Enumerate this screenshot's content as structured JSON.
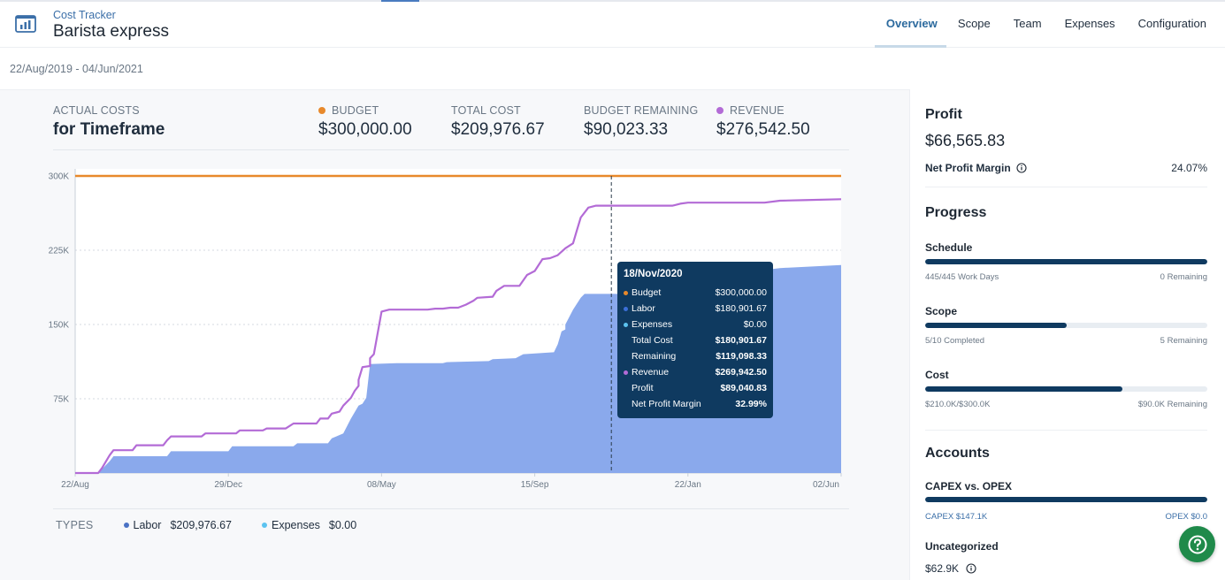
{
  "header": {
    "app_name": "Cost Tracker",
    "project_name": "Barista express",
    "tabs": [
      {
        "label": "Overview",
        "active": true
      },
      {
        "label": "Scope",
        "active": false
      },
      {
        "label": "Team",
        "active": false
      },
      {
        "label": "Expenses",
        "active": false
      },
      {
        "label": "Configuration",
        "active": false
      }
    ]
  },
  "date_range": "22/Aug/2019 - 04/Jun/2021",
  "kpis": {
    "actual_costs": {
      "label": "ACTUAL COSTS",
      "value": "for Timeframe"
    },
    "budget": {
      "label": "BUDGET",
      "value": "$300,000.00",
      "color": "#e8892b"
    },
    "total_cost": {
      "label": "TOTAL COST",
      "value": "$209,976.67"
    },
    "budget_remaining": {
      "label": "BUDGET REMAINING",
      "value": "$90,023.33"
    },
    "revenue": {
      "label": "REVENUE",
      "value": "$276,542.50",
      "color": "#b36bd6"
    }
  },
  "chart_data": {
    "type": "area",
    "x_tick_labels": [
      "22/Aug",
      "29/Dec",
      "08/May",
      "15/Sep",
      "22/Jan",
      "02/Jun"
    ],
    "y_tick_labels": [
      "300K",
      "225K",
      "150K",
      "75K"
    ],
    "ylim": [
      0,
      300000
    ],
    "grid": true,
    "series": [
      {
        "name": "Budget",
        "color": "#e8892b",
        "kind": "line",
        "values": [
          [
            0,
            300000
          ],
          [
            1,
            300000
          ]
        ]
      },
      {
        "name": "Labor",
        "color": "#8aa9ec",
        "kind": "area",
        "values": [
          [
            0,
            0
          ],
          [
            0.03,
            0
          ],
          [
            0.045,
            12000
          ],
          [
            0.05,
            17000
          ],
          [
            0.12,
            17000
          ],
          [
            0.125,
            22000
          ],
          [
            0.2,
            22000
          ],
          [
            0.205,
            27000
          ],
          [
            0.285,
            27000
          ],
          [
            0.29,
            30000
          ],
          [
            0.33,
            30000
          ],
          [
            0.335,
            35000
          ],
          [
            0.35,
            40000
          ],
          [
            0.36,
            55000
          ],
          [
            0.37,
            68000
          ],
          [
            0.375,
            70000
          ],
          [
            0.38,
            76000
          ],
          [
            0.385,
            110000
          ],
          [
            0.42,
            111000
          ],
          [
            0.48,
            111000
          ],
          [
            0.485,
            112000
          ],
          [
            0.54,
            113000
          ],
          [
            0.545,
            115000
          ],
          [
            0.575,
            116000
          ],
          [
            0.585,
            120000
          ],
          [
            0.625,
            122000
          ],
          [
            0.63,
            130000
          ],
          [
            0.635,
            143000
          ],
          [
            0.64,
            145000
          ],
          [
            0.64,
            150000
          ],
          [
            0.65,
            165000
          ],
          [
            0.66,
            177000
          ],
          [
            0.665,
            180900
          ],
          [
            0.76,
            180900
          ],
          [
            0.765,
            183000
          ],
          [
            0.8,
            186000
          ],
          [
            0.82,
            190000
          ],
          [
            0.85,
            197000
          ],
          [
            0.87,
            200000
          ],
          [
            0.89,
            204000
          ],
          [
            0.92,
            207000
          ],
          [
            1,
            209976
          ]
        ]
      },
      {
        "name": "Expenses",
        "color": "#5cc3f0",
        "kind": "line",
        "values": [
          [
            0,
            0
          ],
          [
            1,
            0
          ]
        ]
      },
      {
        "name": "Revenue",
        "color": "#b36bd6",
        "kind": "line",
        "values": [
          [
            0,
            0
          ],
          [
            0.03,
            0
          ],
          [
            0.035,
            5000
          ],
          [
            0.045,
            18000
          ],
          [
            0.05,
            23000
          ],
          [
            0.075,
            23000
          ],
          [
            0.08,
            28000
          ],
          [
            0.115,
            28000
          ],
          [
            0.12,
            33000
          ],
          [
            0.125,
            37000
          ],
          [
            0.165,
            37000
          ],
          [
            0.17,
            40000
          ],
          [
            0.21,
            40000
          ],
          [
            0.215,
            43000
          ],
          [
            0.245,
            43000
          ],
          [
            0.25,
            45000
          ],
          [
            0.275,
            45000
          ],
          [
            0.285,
            50000
          ],
          [
            0.315,
            50000
          ],
          [
            0.32,
            55000
          ],
          [
            0.33,
            55000
          ],
          [
            0.335,
            60000
          ],
          [
            0.345,
            62000
          ],
          [
            0.35,
            68000
          ],
          [
            0.36,
            76000
          ],
          [
            0.365,
            83000
          ],
          [
            0.37,
            88000
          ],
          [
            0.37,
            94000
          ],
          [
            0.375,
            107000
          ],
          [
            0.385,
            108000
          ],
          [
            0.385,
            116000
          ],
          [
            0.39,
            120000
          ],
          [
            0.4,
            163000
          ],
          [
            0.41,
            165000
          ],
          [
            0.46,
            165000
          ],
          [
            0.47,
            166000
          ],
          [
            0.48,
            166000
          ],
          [
            0.49,
            167000
          ],
          [
            0.5,
            167000
          ],
          [
            0.51,
            170000
          ],
          [
            0.52,
            174000
          ],
          [
            0.525,
            177000
          ],
          [
            0.545,
            178000
          ],
          [
            0.55,
            184000
          ],
          [
            0.56,
            189000
          ],
          [
            0.58,
            189000
          ],
          [
            0.59,
            200000
          ],
          [
            0.6,
            204000
          ],
          [
            0.61,
            216000
          ],
          [
            0.62,
            217000
          ],
          [
            0.63,
            220000
          ],
          [
            0.64,
            227000
          ],
          [
            0.65,
            232000
          ],
          [
            0.655,
            245000
          ],
          [
            0.66,
            258000
          ],
          [
            0.665,
            263000
          ],
          [
            0.67,
            268000
          ],
          [
            0.68,
            270000
          ],
          [
            0.7,
            270000
          ],
          [
            0.78,
            270000
          ],
          [
            0.79,
            272000
          ],
          [
            0.8,
            273000
          ],
          [
            0.9,
            273000
          ],
          [
            0.92,
            275000
          ],
          [
            0.95,
            275500
          ],
          [
            1,
            276542
          ]
        ]
      }
    ],
    "hover_x": 0.7
  },
  "tooltip": {
    "title": "18/Nov/2020",
    "rows": [
      {
        "label": "Budget",
        "value": "$300,000.00",
        "dot": "#e8892b",
        "bold": false
      },
      {
        "label": "Labor",
        "value": "$180,901.67",
        "dot": "#3b6fd8",
        "bold": false
      },
      {
        "label": "Expenses",
        "value": "$0.00",
        "dot": "#5cc3f0",
        "bold": false
      },
      {
        "label": "Total Cost",
        "value": "$180,901.67",
        "dot": "",
        "bold": true
      },
      {
        "label": "Remaining",
        "value": "$119,098.33",
        "dot": "",
        "bold": true
      },
      {
        "label": "Revenue",
        "value": "$269,942.50",
        "dot": "#b36bd6",
        "bold": true
      },
      {
        "label": "Profit",
        "value": "$89,040.83",
        "dot": "",
        "bold": true
      },
      {
        "label": "Net Profit Margin",
        "value": "32.99%",
        "dot": "",
        "bold": true
      }
    ]
  },
  "types": {
    "label": "TYPES",
    "labor": {
      "label": "Labor",
      "value": "$209,976.67",
      "color": "#4a72c4"
    },
    "expenses": {
      "label": "Expenses",
      "value": "$0.00",
      "color": "#5cc3f0"
    }
  },
  "sidebar": {
    "profit_title": "Profit",
    "profit_value": "$66,565.83",
    "net_margin_label": "Net Profit Margin",
    "net_margin_value": "24.07%",
    "progress_title": "Progress",
    "schedule": {
      "label": "Schedule",
      "fill": 1.0,
      "left": "445/445 Work Days",
      "right": "0 Remaining"
    },
    "scope": {
      "label": "Scope",
      "fill": 0.5,
      "left": "5/10 Completed",
      "right": "5 Remaining"
    },
    "cost": {
      "label": "Cost",
      "fill": 0.7,
      "left": "$210.0K/$300.0K",
      "right": "$90.0K Remaining"
    },
    "accounts_title": "Accounts",
    "capex": {
      "label": "CAPEX vs. OPEX",
      "fill": 1.0,
      "left": "CAPEX $147.1K",
      "right": "OPEX $0.0"
    },
    "uncategorized_label": "Uncategorized",
    "uncategorized_value": "$62.9K"
  }
}
